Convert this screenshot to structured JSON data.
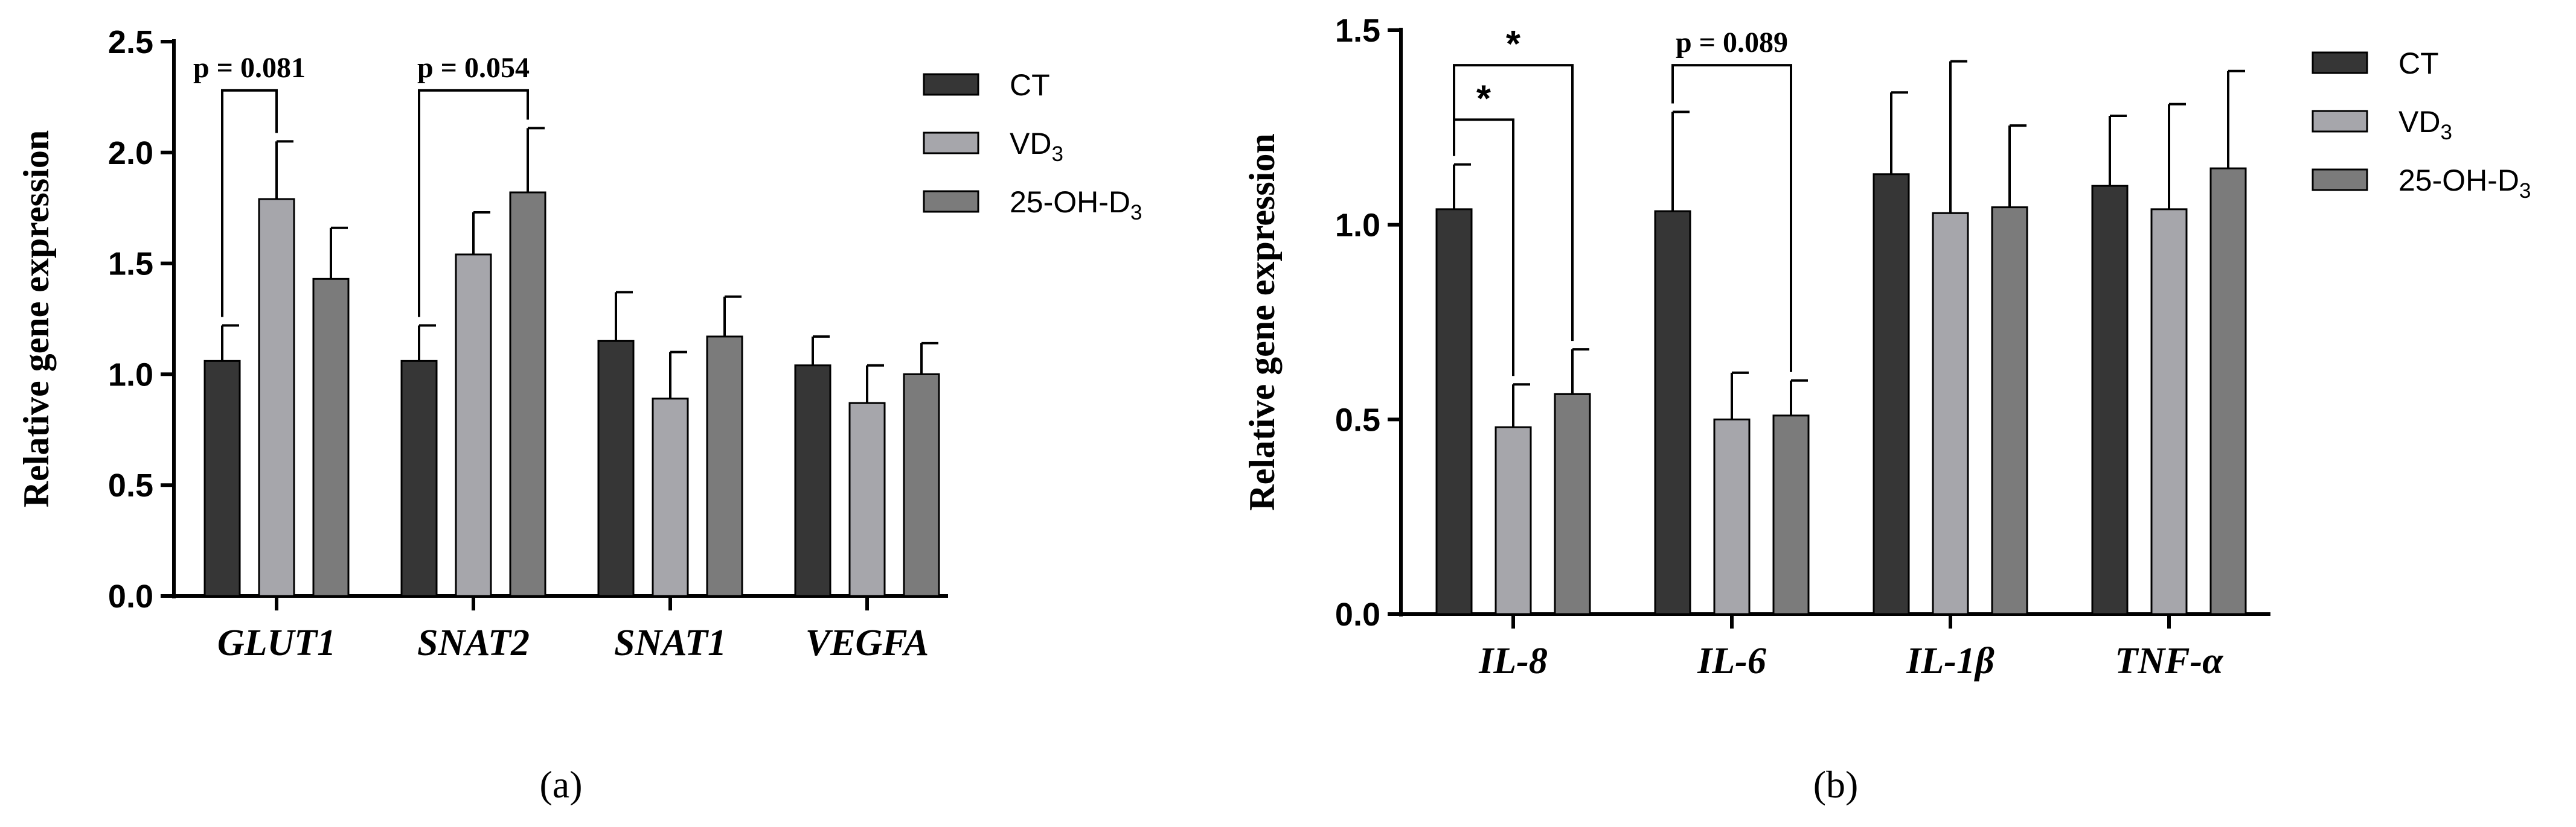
{
  "chart_data": [
    {
      "type": "bar",
      "panel_label": "(a)",
      "ylabel": "Relative gene expression",
      "ylim": [
        0,
        2.5
      ],
      "yticks": [
        0.0,
        0.5,
        1.0,
        1.5,
        2.0,
        2.5
      ],
      "ytick_labels": [
        "0.0",
        "0.5",
        "1.0",
        "1.5",
        "2.0",
        "2.5"
      ],
      "categories": [
        "GLUT1",
        "SNAT2",
        "SNAT1",
        "VEGFA"
      ],
      "series": [
        {
          "name": "CT",
          "name_base": "CT",
          "name_sub": "",
          "color": "#363636",
          "values": [
            1.06,
            1.06,
            1.15,
            1.04
          ],
          "errors": [
            0.16,
            0.16,
            0.22,
            0.13
          ]
        },
        {
          "name": "VD3",
          "name_base": "VD",
          "name_sub": "3",
          "color": "#a6a6ab",
          "values": [
            1.79,
            1.54,
            0.89,
            0.87
          ],
          "errors": [
            0.26,
            0.19,
            0.21,
            0.17
          ]
        },
        {
          "name": "25-OH-D3",
          "name_base": "25-OH-D",
          "name_sub": "3",
          "color": "#7b7b7b",
          "values": [
            1.43,
            1.82,
            1.17,
            1.0
          ],
          "errors": [
            0.23,
            0.29,
            0.18,
            0.14
          ]
        }
      ],
      "annotations": [
        {
          "category": 0,
          "from": 0,
          "to": 1,
          "text": "p = 0.081",
          "level": 2.28
        },
        {
          "category": 1,
          "from": 0,
          "to": 2,
          "text": "p = 0.054",
          "level": 2.28
        }
      ]
    },
    {
      "type": "bar",
      "panel_label": "(b)",
      "ylabel": "Relative gene expression",
      "ylim": [
        0,
        1.5
      ],
      "yticks": [
        0.0,
        0.5,
        1.0,
        1.5
      ],
      "ytick_labels": [
        "0.0",
        "0.5",
        "1.0",
        "1.5"
      ],
      "categories": [
        "IL-8",
        "IL-6",
        "IL-1β",
        "TNF-α"
      ],
      "series": [
        {
          "name": "CT",
          "name_base": "CT",
          "name_sub": "",
          "color": "#363636",
          "values": [
            1.04,
            1.035,
            1.13,
            1.1
          ],
          "errors": [
            0.115,
            0.255,
            0.21,
            0.18
          ]
        },
        {
          "name": "VD3",
          "name_base": "VD",
          "name_sub": "3",
          "color": "#a6a6ab",
          "values": [
            0.48,
            0.5,
            1.03,
            1.04
          ],
          "errors": [
            0.11,
            0.12,
            0.39,
            0.27
          ]
        },
        {
          "name": "25-OH-D3",
          "name_base": "25-OH-D",
          "name_sub": "3",
          "color": "#7b7b7b",
          "values": [
            0.565,
            0.51,
            1.045,
            1.145
          ],
          "errors": [
            0.115,
            0.09,
            0.21,
            0.25
          ]
        }
      ],
      "annotations": [
        {
          "category": 0,
          "from": 0,
          "to": 1,
          "text": "*",
          "level": 1.27
        },
        {
          "category": 0,
          "from": 0,
          "to": 2,
          "text": "*",
          "level": 1.41
        },
        {
          "category": 1,
          "from": 0,
          "to": 2,
          "text": "p = 0.089",
          "level": 1.41
        }
      ]
    }
  ]
}
